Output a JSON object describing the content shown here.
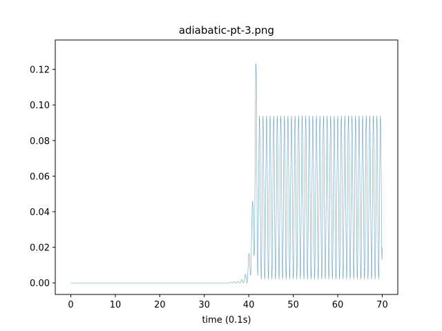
{
  "chart_data": {
    "type": "line",
    "title": "adiabatic-pt-3.png",
    "xlabel": "time (0.1s)",
    "ylabel": "",
    "xlim": [
      -3.5,
      73.5
    ],
    "ylim": [
      -0.0065,
      0.1365
    ],
    "x_ticks": [
      0,
      10,
      20,
      30,
      40,
      50,
      60,
      70
    ],
    "x_tick_labels": [
      "0",
      "10",
      "20",
      "30",
      "40",
      "50",
      "60",
      "70"
    ],
    "y_ticks": [
      0.0,
      0.02,
      0.04,
      0.06,
      0.08,
      0.1,
      0.12
    ],
    "y_tick_labels": [
      "0.00",
      "0.02",
      "0.04",
      "0.06",
      "0.08",
      "0.10",
      "0.12"
    ],
    "grid": false,
    "legend": "none",
    "series": [
      {
        "color": "#1f77b4",
        "x": [
          0,
          35,
          38,
          39,
          39.6,
          40.1,
          40.5,
          40.9,
          41.2,
          41.5,
          41.7,
          42.0,
          42.3,
          43,
          45,
          50,
          55,
          60,
          65,
          69.9,
          70.0
        ],
        "y": [
          0.0,
          0.0,
          0.001,
          0.003,
          0.008,
          0.018,
          0.03,
          0.05,
          0.08,
          0.116,
          0.13,
          0.098,
          0.094,
          0.094,
          0.094,
          0.094,
          0.094,
          0.094,
          0.094,
          0.094,
          0.04
        ],
        "y_min": [
          0.0,
          0.0,
          0.0,
          0.0,
          0.0,
          0.002,
          0.005,
          0.01,
          0.015,
          0.02,
          0.022,
          0.004,
          0.002,
          0.002,
          0.002,
          0.002,
          0.002,
          0.002,
          0.002,
          0.002,
          0.02
        ],
        "oscillation_period": 0.8
      }
    ]
  }
}
